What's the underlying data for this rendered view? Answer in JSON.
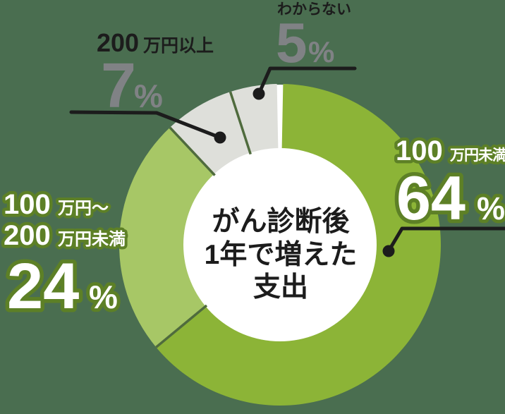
{
  "colors": {
    "background": "#4a6e50",
    "slice_green_dark": "#8cb437",
    "slice_green_light": "#a7c766",
    "slice_gray": "#dedfda",
    "separator": "#4f6b3d",
    "leader_line": "#1c1c1c",
    "text_dark": "#1c1c1c",
    "text_gray": "#808285",
    "text_white": "#ffffff",
    "text_outline_green": "#5d8026",
    "donut_hole": "#ffffff"
  },
  "chart_data": {
    "type": "pie",
    "variant": "donut",
    "title": "がん診断後1年で増えた支出",
    "unit": "%",
    "start_angle_deg": 0,
    "direction": "clockwise",
    "legend_position": "callout-labels",
    "categories": [
      "100万円未満",
      "100万円〜200万円未満",
      "200万円以上",
      "わからない"
    ],
    "values": [
      64,
      24,
      7,
      5
    ],
    "slices": [
      {
        "label": "100万円未満",
        "value": 64,
        "color": "#8cb437",
        "label_style": "white-green-outline"
      },
      {
        "label": "100万円〜200万円未満",
        "value": 24,
        "color": "#a7c766",
        "label_style": "white-green-outline"
      },
      {
        "label": "200万円以上",
        "value": 7,
        "color": "#dedfda",
        "label_style": "gray-number-black-name"
      },
      {
        "label": "わからない",
        "value": 5,
        "color": "#dedfda",
        "label_style": "gray-number-black-name"
      }
    ]
  },
  "center": {
    "line1": "がん診断後",
    "line2": "1年で増えた",
    "line3": "支出"
  },
  "labels": {
    "wakaranai": {
      "name": "わからない",
      "value": "5",
      "unit": "%"
    },
    "over_200": {
      "amount": "200",
      "suffix": "万円以上",
      "value": "7",
      "unit": "%"
    },
    "under_100": {
      "amount": "100",
      "suffix": "万円未満",
      "value": "64",
      "unit": "%"
    },
    "between_100_200": {
      "line1_amount": "100",
      "line1_suffix": "万円〜",
      "line2_amount": "200",
      "line2_suffix": "万円未満",
      "value": "24",
      "unit": "%"
    }
  }
}
